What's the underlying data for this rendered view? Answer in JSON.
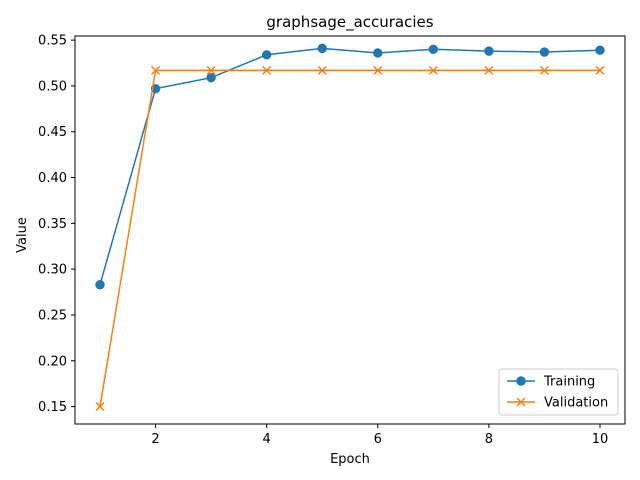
{
  "chart_data": {
    "type": "line",
    "title": "graphsage_accuracies",
    "xlabel": "Epoch",
    "ylabel": "Value",
    "x": [
      1,
      2,
      3,
      4,
      5,
      6,
      7,
      8,
      9,
      10
    ],
    "xlim": [
      0.55,
      10.45
    ],
    "ylim": [
      0.131,
      0.5545
    ],
    "xticks": [
      2,
      4,
      6,
      8,
      10
    ],
    "yticks": [
      0.15,
      0.2,
      0.25,
      0.3,
      0.35,
      0.4,
      0.45,
      0.5,
      0.55
    ],
    "ytick_labels": [
      "0.15",
      "0.20",
      "0.25",
      "0.30",
      "0.35",
      "0.40",
      "0.45",
      "0.50",
      "0.55"
    ],
    "grid": false,
    "legend_position": "lower-right",
    "series": [
      {
        "name": "Training",
        "color": "#1f77b4",
        "marker": "circle",
        "values": [
          0.283,
          0.497,
          0.509,
          0.534,
          0.541,
          0.536,
          0.54,
          0.538,
          0.537,
          0.539
        ]
      },
      {
        "name": "Validation",
        "color": "#ff7f0e",
        "marker": "x",
        "values": [
          0.15,
          0.517,
          0.517,
          0.517,
          0.517,
          0.517,
          0.517,
          0.517,
          0.517,
          0.517
        ]
      }
    ]
  }
}
